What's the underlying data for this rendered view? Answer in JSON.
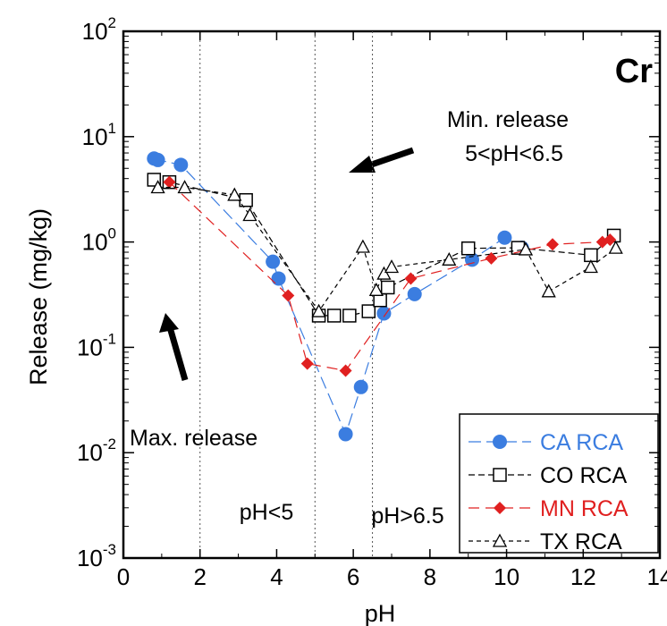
{
  "chart_data": {
    "type": "scatter",
    "title": "Cr",
    "xlabel": "pH",
    "ylabel": "Release (mg/kg)",
    "xlim": [
      0,
      14
    ],
    "ylim": [
      0.001,
      100
    ],
    "yscale": "log",
    "x_ticks": [
      0,
      2,
      4,
      6,
      8,
      10,
      12,
      14
    ],
    "y_ticks": [
      {
        "value": 0.001,
        "base": "10",
        "exp": "-3"
      },
      {
        "value": 0.01,
        "base": "10",
        "exp": "-2"
      },
      {
        "value": 0.1,
        "base": "10",
        "exp": "-1"
      },
      {
        "value": 1,
        "base": "10",
        "exp": "0"
      },
      {
        "value": 10,
        "base": "10",
        "exp": "1"
      },
      {
        "value": 100,
        "base": "10",
        "exp": "2"
      }
    ],
    "vlines": [
      2,
      5,
      6.5
    ],
    "grid": false,
    "legend_position": "bottom-right",
    "annotations": {
      "min_release_line1": "Min. release",
      "min_release_line2": "5<pH<6.5",
      "max_release": "Max. release",
      "ph_lt_5": "pH<5",
      "ph_gt_65": "pH>6.5"
    },
    "series": [
      {
        "name": "CA RCA",
        "color": "#3b7de0",
        "marker": "circle",
        "points": [
          [
            0.8,
            6.2
          ],
          [
            0.9,
            6.0
          ],
          [
            1.5,
            5.4
          ],
          [
            3.9,
            0.65
          ],
          [
            4.05,
            0.45
          ],
          [
            5.8,
            0.015
          ],
          [
            6.2,
            0.042
          ],
          [
            6.8,
            0.21
          ],
          [
            7.6,
            0.32
          ],
          [
            9.1,
            0.68
          ],
          [
            9.95,
            1.1
          ],
          [
            10.4,
            0.88
          ]
        ]
      },
      {
        "name": "CO RCA",
        "color": "#000000",
        "marker": "square",
        "points": [
          [
            0.8,
            3.9
          ],
          [
            1.2,
            3.7
          ],
          [
            3.2,
            2.5
          ],
          [
            5.1,
            0.2
          ],
          [
            5.5,
            0.2
          ],
          [
            5.9,
            0.2
          ],
          [
            6.4,
            0.22
          ],
          [
            6.7,
            0.28
          ],
          [
            6.9,
            0.37
          ],
          [
            9.0,
            0.87
          ],
          [
            10.3,
            0.88
          ],
          [
            12.2,
            0.75
          ],
          [
            12.8,
            1.15
          ]
        ]
      },
      {
        "name": "MN RCA",
        "color": "#e02020",
        "marker": "diamond",
        "points": [
          [
            1.2,
            3.7
          ],
          [
            4.3,
            0.31
          ],
          [
            4.8,
            0.07
          ],
          [
            5.8,
            0.06
          ],
          [
            7.5,
            0.45
          ],
          [
            9.6,
            0.7
          ],
          [
            11.2,
            0.95
          ],
          [
            12.5,
            1.0
          ],
          [
            12.7,
            1.05
          ]
        ]
      },
      {
        "name": "TX RCA",
        "color": "#000000",
        "marker": "triangle",
        "points": [
          [
            0.9,
            3.3
          ],
          [
            1.6,
            3.3
          ],
          [
            2.9,
            2.8
          ],
          [
            3.3,
            1.8
          ],
          [
            5.1,
            0.22
          ],
          [
            6.25,
            0.9
          ],
          [
            6.6,
            0.35
          ],
          [
            6.8,
            0.5
          ],
          [
            7.0,
            0.58
          ],
          [
            8.5,
            0.68
          ],
          [
            10.5,
            0.85
          ],
          [
            11.1,
            0.34
          ],
          [
            12.2,
            0.58
          ],
          [
            12.85,
            0.88
          ]
        ]
      }
    ]
  }
}
